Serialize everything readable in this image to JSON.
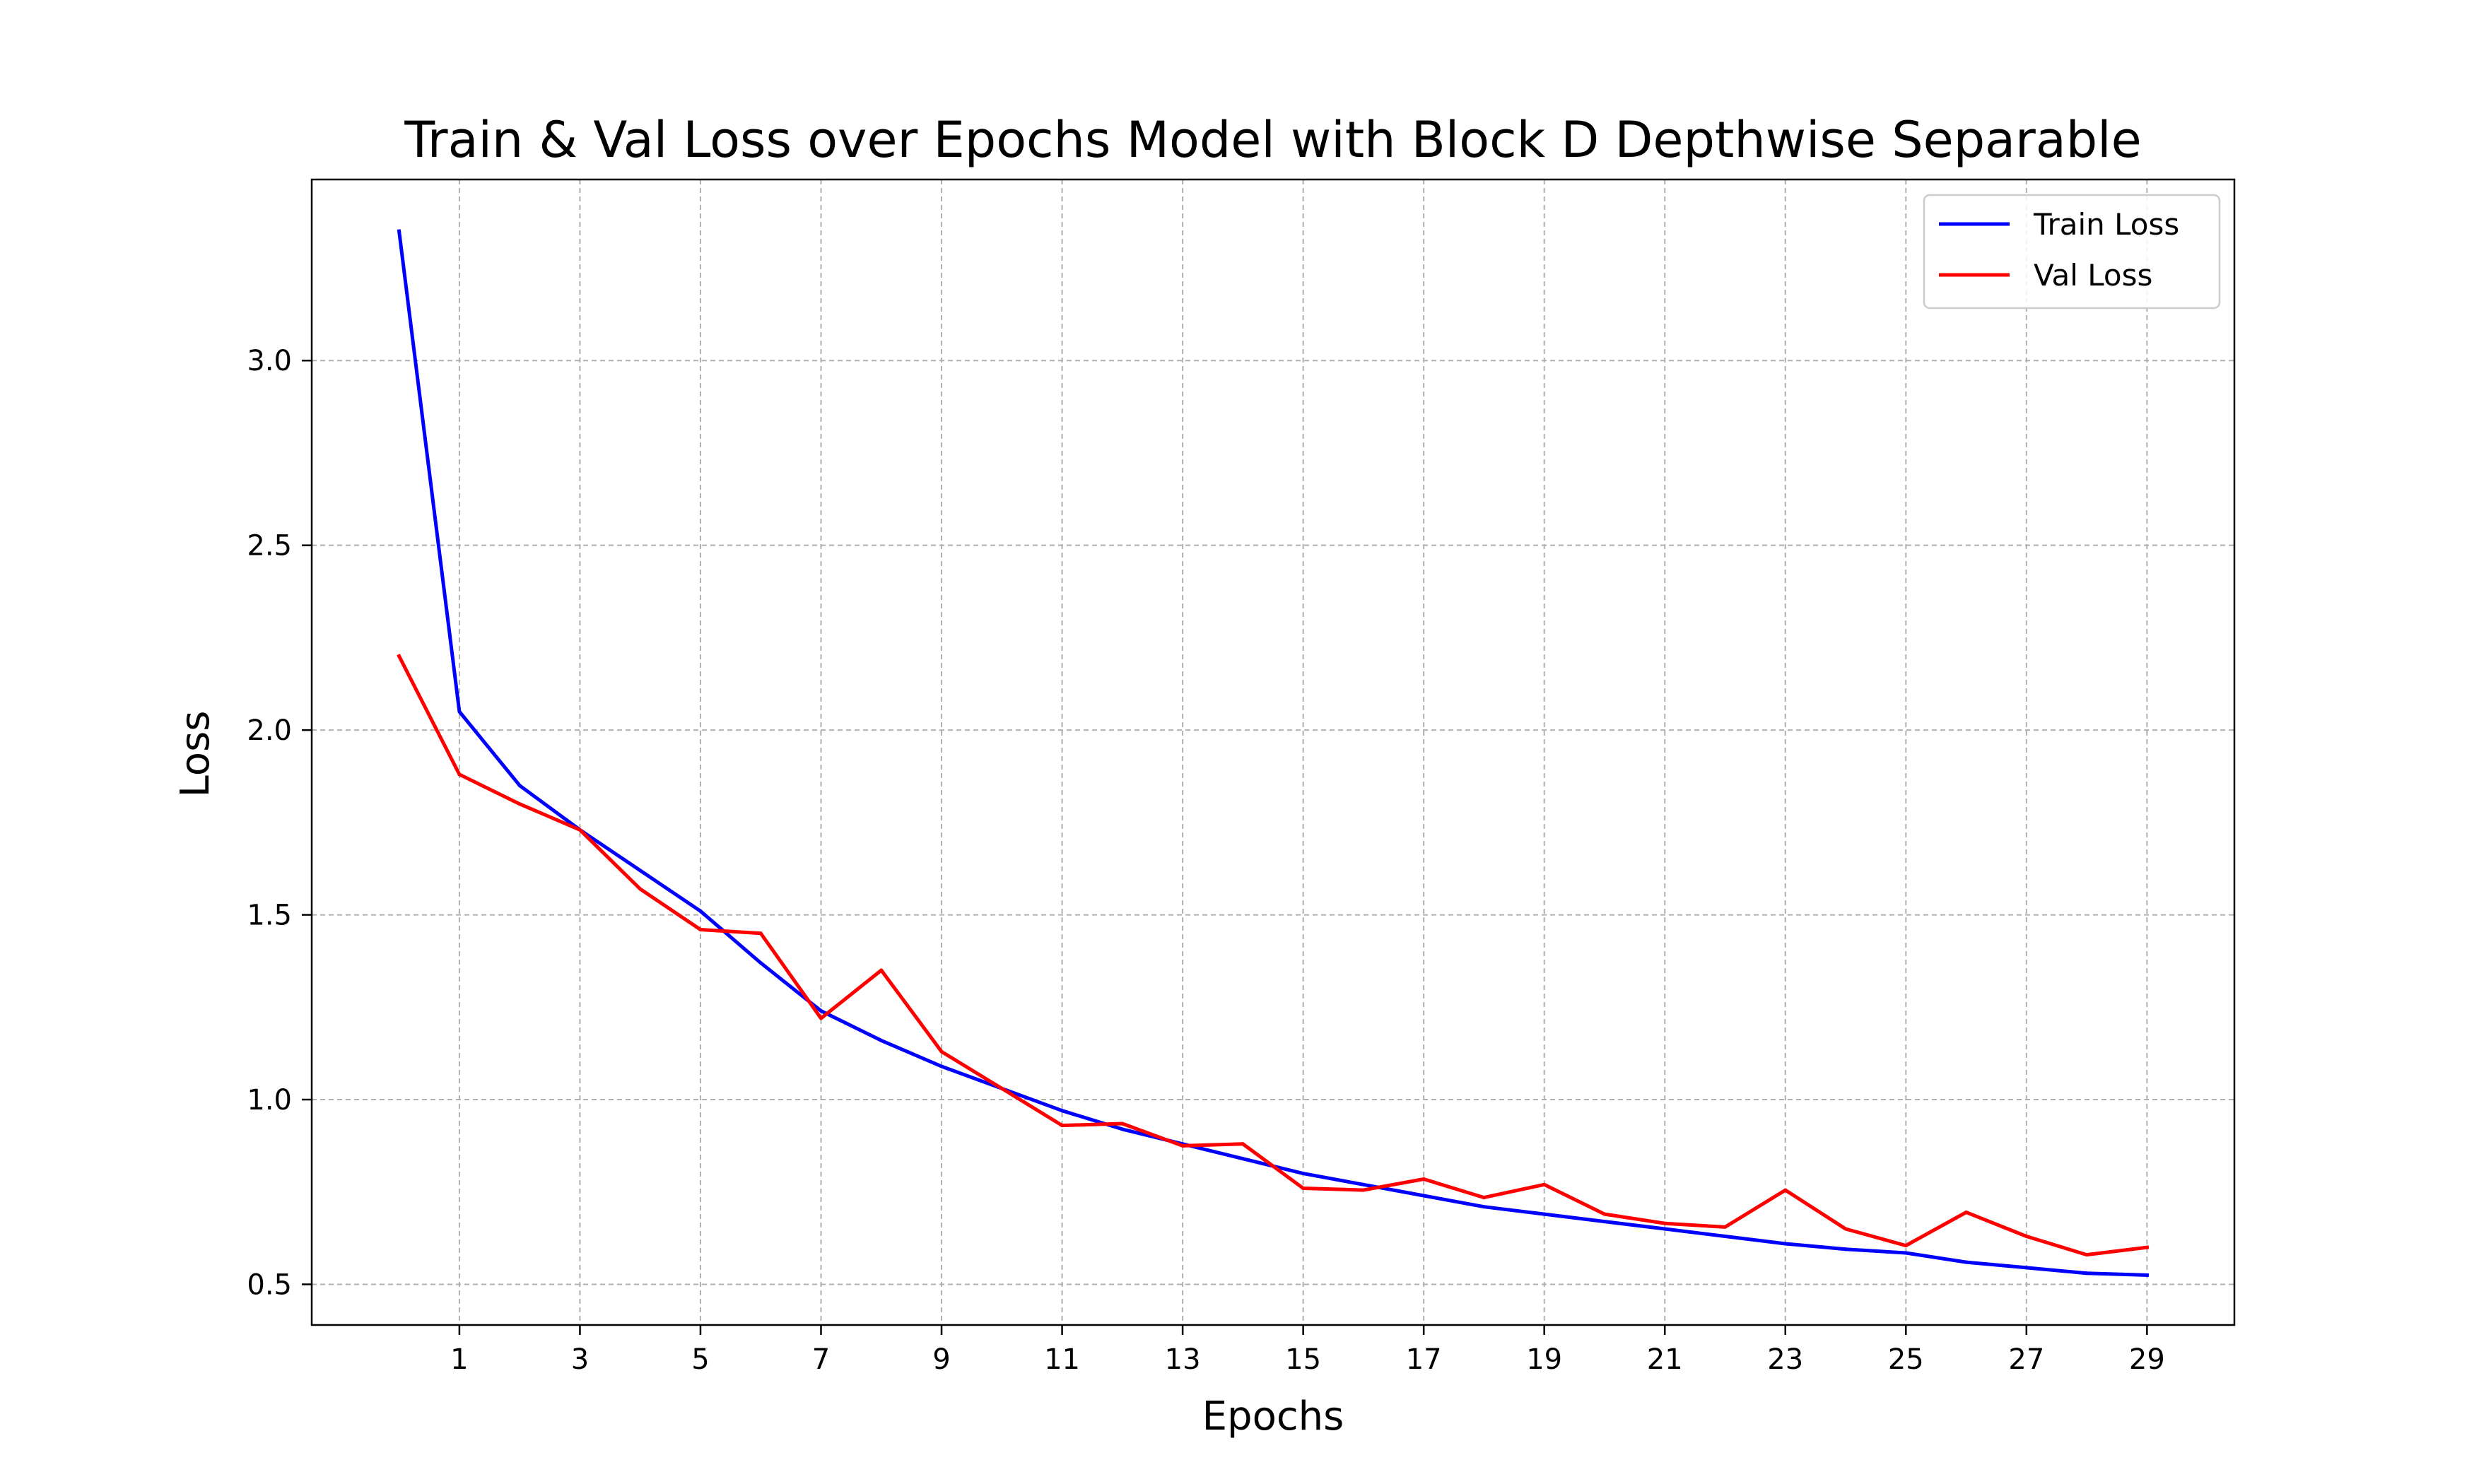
{
  "chart_data": {
    "type": "line",
    "title": "Train & Val Loss over Epochs Model with Block D Depthwise Separable",
    "xlabel": "Epochs",
    "ylabel": "Loss",
    "xlim": [
      -1.45,
      30.45
    ],
    "ylim": [
      0.39,
      3.49
    ],
    "xticks": [
      1,
      3,
      5,
      7,
      9,
      11,
      13,
      15,
      17,
      19,
      21,
      23,
      25,
      27,
      29
    ],
    "yticks": [
      0.5,
      1.0,
      1.5,
      2.0,
      2.5,
      3.0
    ],
    "ytick_labels": [
      "0.5",
      "1.0",
      "1.5",
      "2.0",
      "2.5",
      "3.0"
    ],
    "grid": true,
    "legend_position": "top-right",
    "x": [
      0,
      1,
      2,
      3,
      4,
      5,
      6,
      7,
      8,
      9,
      10,
      11,
      12,
      13,
      14,
      15,
      16,
      17,
      18,
      19,
      20,
      21,
      22,
      23,
      24,
      25,
      26,
      27,
      28,
      29
    ],
    "series": [
      {
        "name": "Train Loss",
        "color": "#0000ff",
        "values": [
          3.35,
          2.05,
          1.85,
          1.73,
          1.62,
          1.51,
          1.37,
          1.24,
          1.16,
          1.09,
          1.03,
          0.97,
          0.92,
          0.88,
          0.84,
          0.8,
          0.77,
          0.74,
          0.71,
          0.69,
          0.67,
          0.65,
          0.63,
          0.61,
          0.595,
          0.585,
          0.56,
          0.545,
          0.53,
          0.525
        ]
      },
      {
        "name": "Val Loss",
        "color": "#ff0000",
        "values": [
          2.2,
          1.88,
          1.8,
          1.73,
          1.57,
          1.46,
          1.45,
          1.22,
          1.35,
          1.13,
          1.03,
          0.93,
          0.935,
          0.875,
          0.88,
          0.76,
          0.755,
          0.785,
          0.735,
          0.77,
          0.69,
          0.665,
          0.655,
          0.755,
          0.65,
          0.605,
          0.695,
          0.63,
          0.58,
          0.6
        ]
      }
    ]
  }
}
